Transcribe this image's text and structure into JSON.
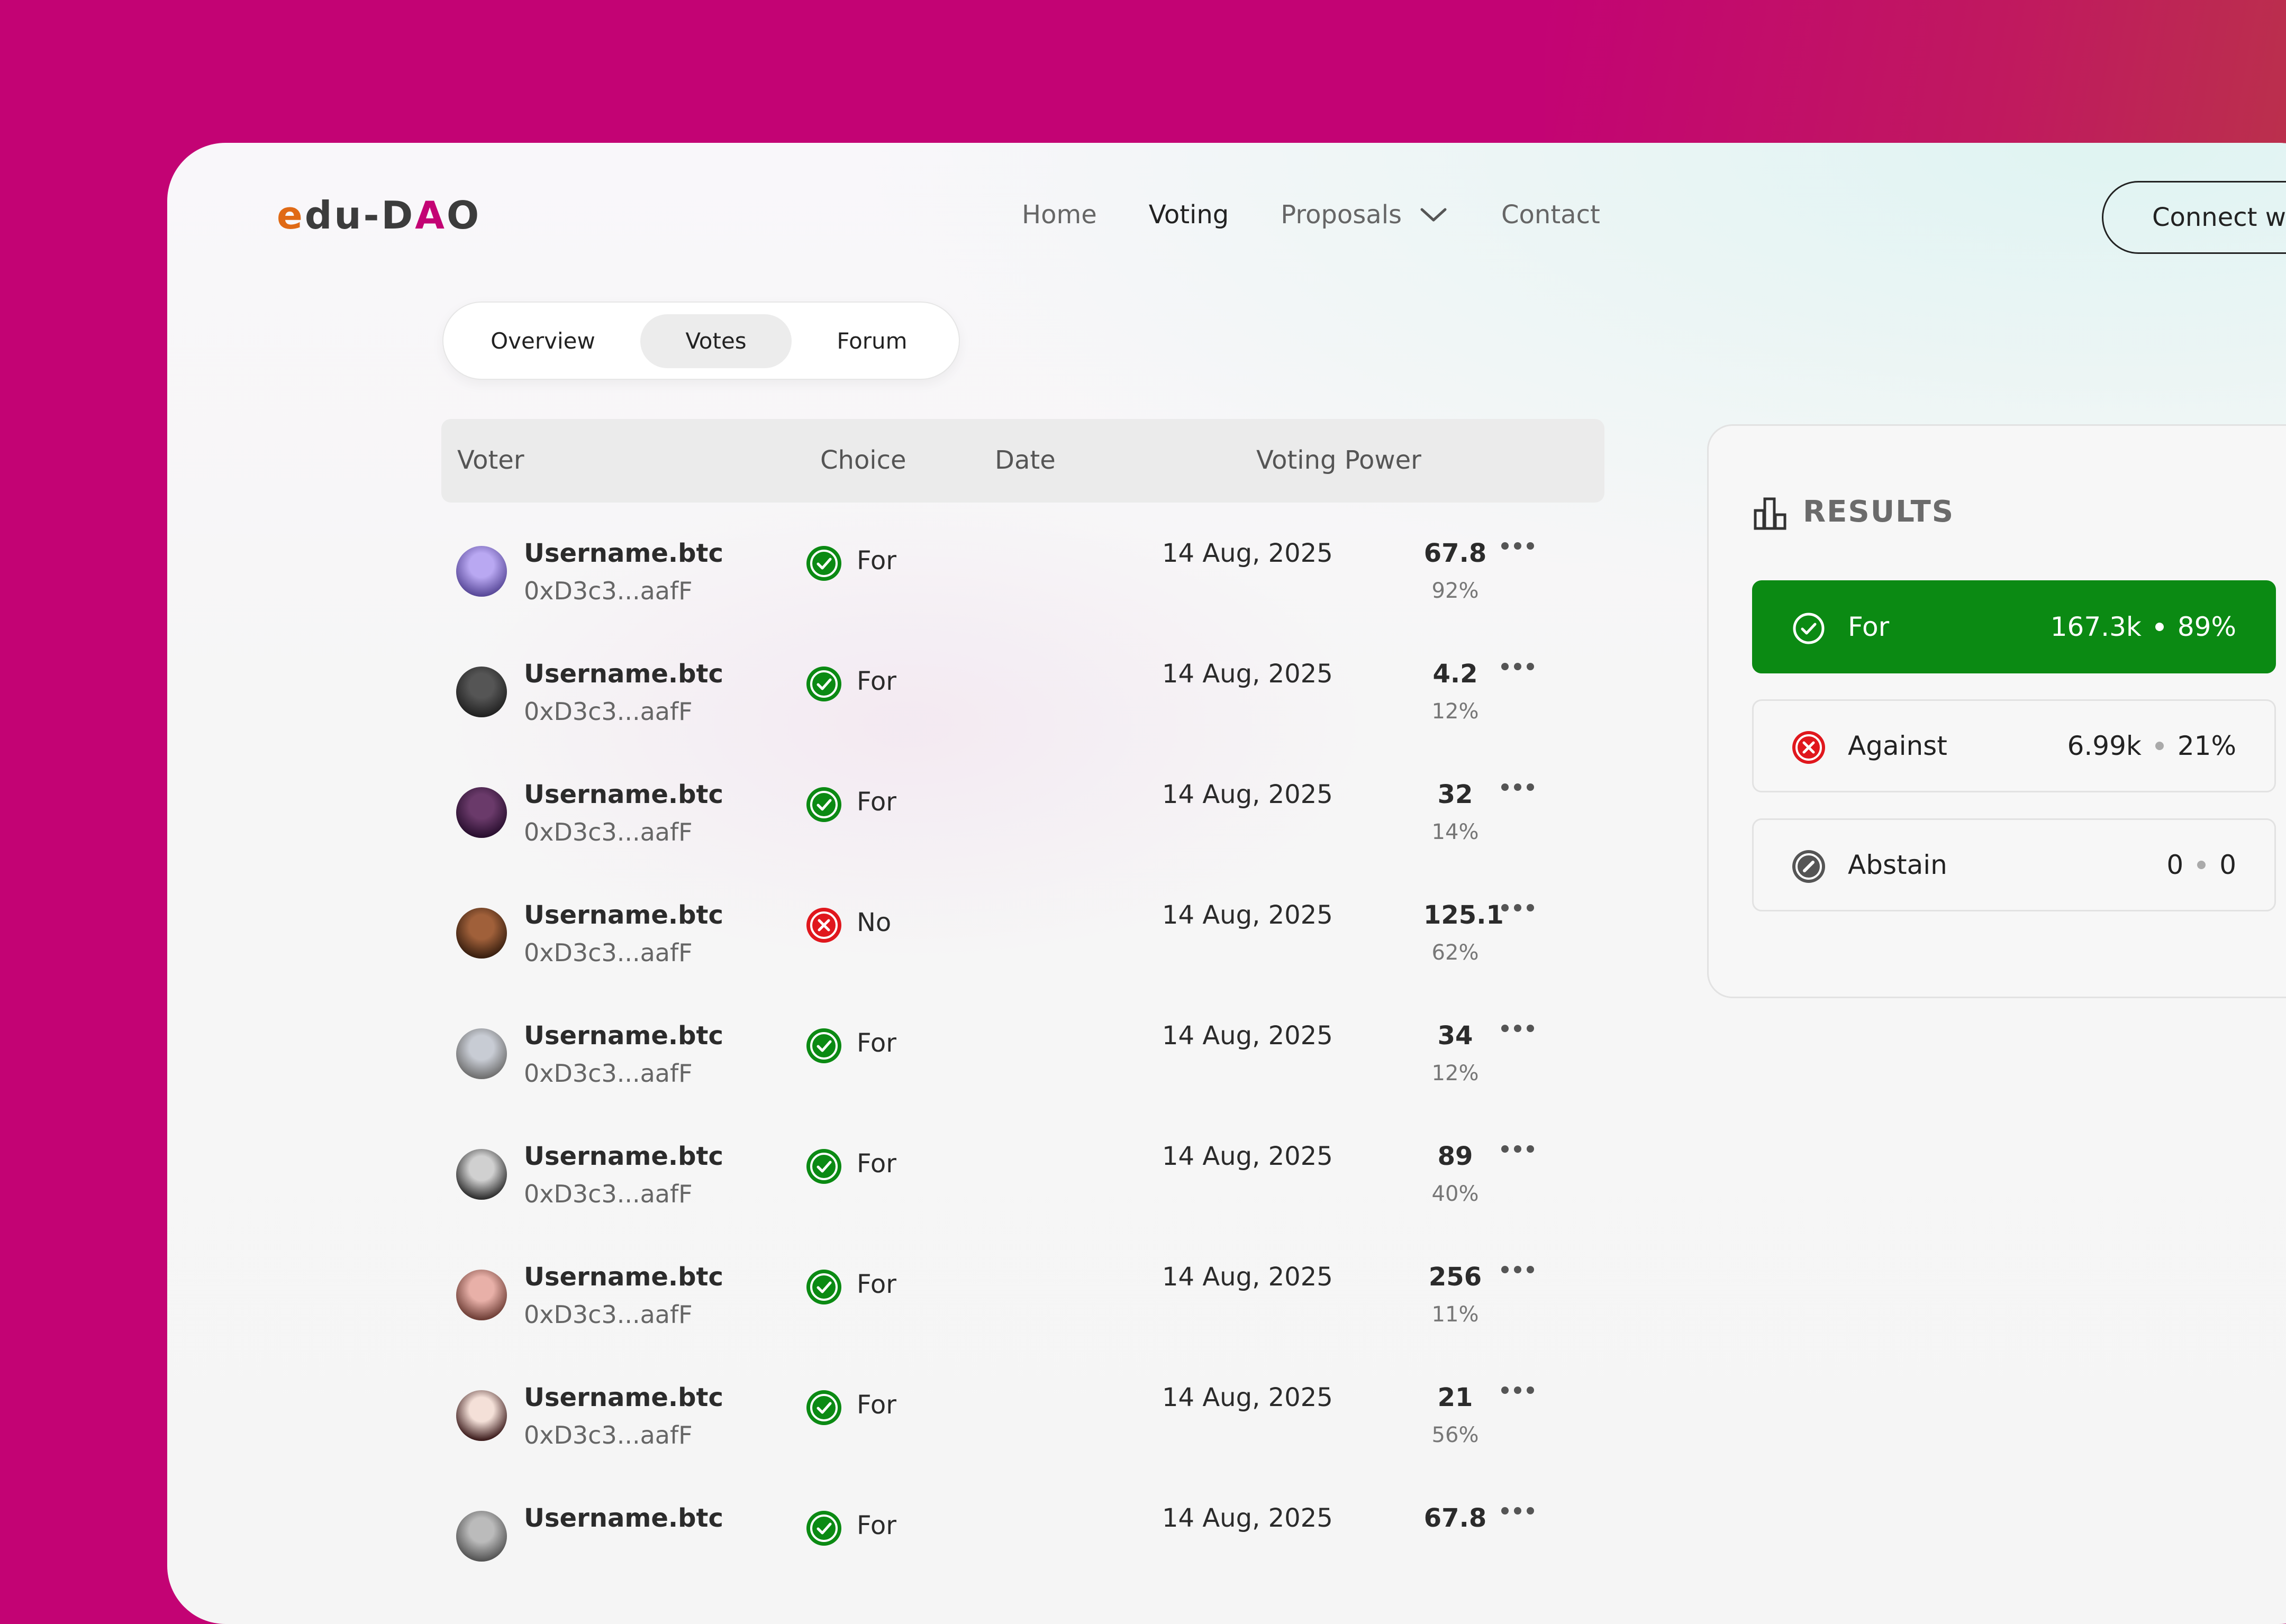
{
  "app": {
    "logo_text": "edu-DAO"
  },
  "nav": {
    "items": [
      "Home",
      "Voting",
      "Proposals",
      "Contact"
    ],
    "active": "Voting",
    "connect_label": "Connect wa"
  },
  "tabs": {
    "items": [
      "Overview",
      "Votes",
      "Forum"
    ],
    "active": "Votes"
  },
  "table": {
    "headers": [
      "Voter",
      "Choice",
      "Date",
      "Voting Power"
    ],
    "rows": [
      {
        "username": "Username.btc",
        "address": "0xD3c3...aafF",
        "choice": "For",
        "date": "14 Aug, 2025",
        "power": "67.8",
        "percent": "92%"
      },
      {
        "username": "Username.btc",
        "address": "0xD3c3...aafF",
        "choice": "For",
        "date": "14 Aug, 2025",
        "power": "4.2",
        "percent": "12%"
      },
      {
        "username": "Username.btc",
        "address": "0xD3c3...aafF",
        "choice": "For",
        "date": "14 Aug, 2025",
        "power": "32",
        "percent": "14%"
      },
      {
        "username": "Username.btc",
        "address": "0xD3c3...aafF",
        "choice": "No",
        "date": "14 Aug, 2025",
        "power": "125.1",
        "percent": "62%"
      },
      {
        "username": "Username.btc",
        "address": "0xD3c3...aafF",
        "choice": "For",
        "date": "14 Aug, 2025",
        "power": "34",
        "percent": "12%"
      },
      {
        "username": "Username.btc",
        "address": "0xD3c3...aafF",
        "choice": "For",
        "date": "14 Aug, 2025",
        "power": "89",
        "percent": "40%"
      },
      {
        "username": "Username.btc",
        "address": "0xD3c3...aafF",
        "choice": "For",
        "date": "14 Aug, 2025",
        "power": "256",
        "percent": "11%"
      },
      {
        "username": "Username.btc",
        "address": "0xD3c3...aafF",
        "choice": "For",
        "date": "14 Aug, 2025",
        "power": "21",
        "percent": "56%"
      },
      {
        "username": "Username.btc",
        "address": "",
        "choice": "For",
        "date": "14 Aug, 2025",
        "power": "67.8",
        "percent": ""
      }
    ]
  },
  "results": {
    "title": "RESULTS",
    "items": [
      {
        "label": "For",
        "amount": "167.3k",
        "percent": "89%"
      },
      {
        "label": "Against",
        "amount": "6.99k",
        "percent": "21%"
      },
      {
        "label": "Abstain",
        "amount": "0",
        "percent": "0"
      }
    ]
  },
  "colors": {
    "brand_magenta": "#c30374",
    "logo_orange": "#e06a16",
    "for_green": "#0b8a13",
    "against_red": "#e0171d",
    "abstain_gray": "#555555"
  },
  "icons": {
    "for": "check-circle-icon",
    "against": "x-circle-icon",
    "abstain": "slash-circle-icon",
    "more": "more-dots-icon",
    "results": "bar-chart-icon",
    "download": "download-icon",
    "proposals_dropdown": "chevron-down-icon"
  }
}
